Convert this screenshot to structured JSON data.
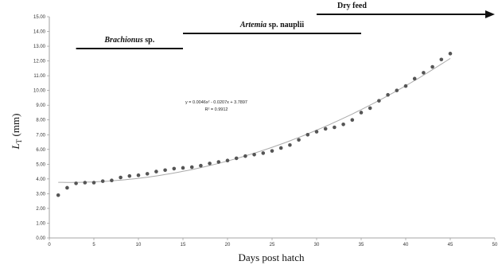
{
  "chart_data": {
    "type": "scatter",
    "xlabel": "Days post hatch",
    "ylabel": "L",
    "ylabel_sub": "T",
    "ylabel_unit": " (mm)",
    "xlim": [
      0,
      50
    ],
    "ylim": [
      0,
      15
    ],
    "x_ticks": [
      0,
      5,
      10,
      15,
      20,
      25,
      30,
      35,
      40,
      45,
      50
    ],
    "y_ticks": [
      "0.00",
      "1.00",
      "2.00",
      "3.00",
      "4.00",
      "5.00",
      "6.00",
      "7.00",
      "8.00",
      "9.00",
      "10.00",
      "11.00",
      "12.00",
      "13.00",
      "14.00",
      "15.00"
    ],
    "grid": false,
    "series": [
      {
        "x": [
          1,
          2,
          3,
          4,
          5,
          6,
          7,
          8,
          9,
          10,
          11,
          12,
          13,
          14,
          15,
          16,
          17,
          18,
          19,
          20,
          21,
          22,
          23,
          24,
          25,
          26,
          27,
          28,
          29,
          30,
          31,
          32,
          33,
          34,
          35,
          36,
          37,
          38,
          39,
          40,
          41,
          42,
          43,
          44,
          45
        ],
        "values": [
          2.9,
          3.4,
          3.7,
          3.75,
          3.75,
          3.85,
          3.9,
          4.1,
          4.2,
          4.25,
          4.35,
          4.5,
          4.6,
          4.7,
          4.75,
          4.8,
          4.9,
          5.05,
          5.15,
          5.25,
          5.4,
          5.55,
          5.65,
          5.75,
          5.9,
          6.1,
          6.3,
          6.65,
          7.0,
          7.2,
          7.4,
          7.5,
          7.7,
          8.0,
          8.5,
          8.8,
          9.3,
          9.7,
          10.0,
          10.3,
          10.8,
          11.2,
          11.6,
          12.1,
          12.5
        ],
        "color": "#555555"
      }
    ],
    "trendline": {
      "a": 0.0046,
      "b": -0.0207,
      "c": 3.7897,
      "x_range": [
        1,
        45
      ],
      "color": "#aaaaaa"
    },
    "annotations": {
      "equation": "y = 0.0046x² - 0.0207x + 3.7897",
      "r2": "R² = 0.9912"
    },
    "feeding_periods": [
      {
        "label": "Brachionus",
        "suffix": " sp.",
        "start": 3,
        "end": 15,
        "arrow": false
      },
      {
        "label": "Artemia",
        "suffix": " sp. nauplii",
        "start": 15,
        "end": 35,
        "arrow": false
      },
      {
        "label": "",
        "suffix": "Dry feed",
        "start": 30,
        "end": 50,
        "arrow": true
      }
    ]
  }
}
